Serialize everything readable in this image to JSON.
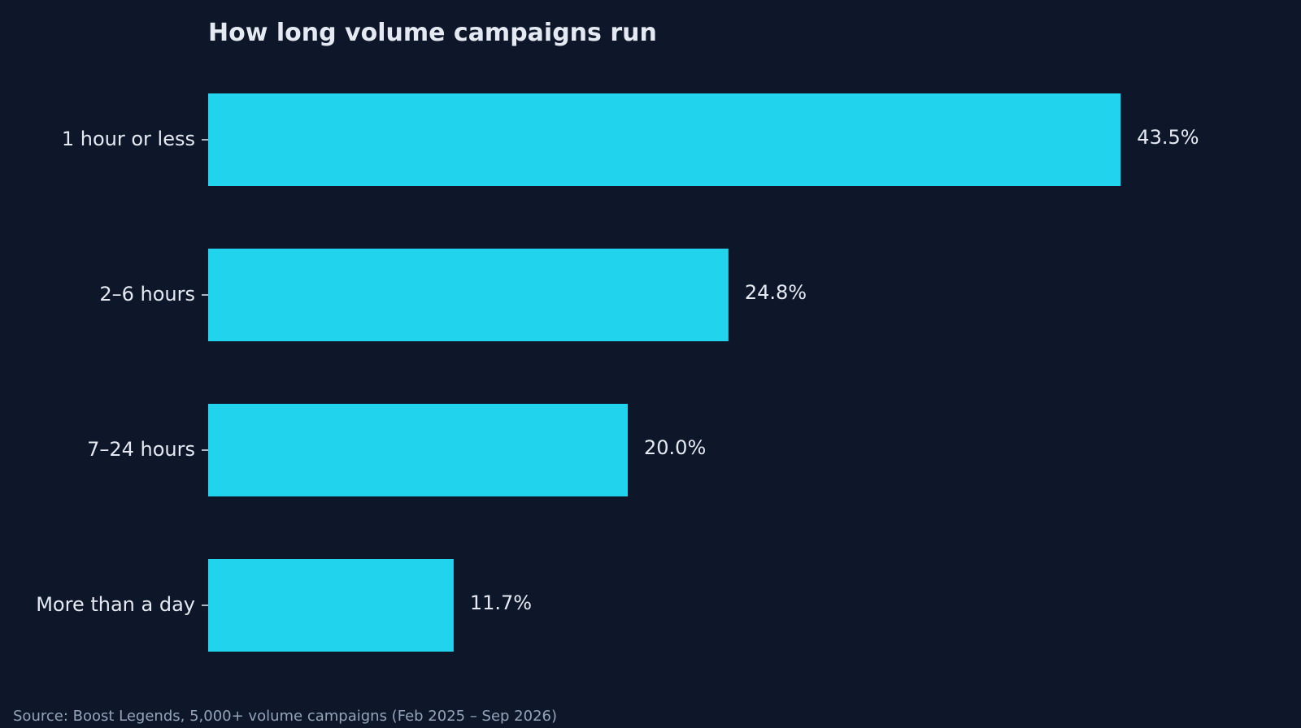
{
  "chart_data": {
    "type": "bar",
    "orientation": "horizontal",
    "title": "How long volume campaigns run",
    "categories": [
      "1 hour or less",
      "2–6 hours",
      "7–24 hours",
      "More than a day"
    ],
    "values": [
      43.5,
      24.8,
      20.0,
      11.7
    ],
    "value_labels": [
      "43.5%",
      "24.8%",
      "20.0%",
      "11.7%"
    ],
    "unit": "%",
    "xlim": [
      0,
      50
    ],
    "grid": false,
    "legend": "none",
    "source": "Source: Boost Legends, 5,000+ volume campaigns (Feb 2025 – Sep 2026)"
  },
  "colors": {
    "background": "#0e172a",
    "bar": "#22d3ee",
    "text": "#e5eaf2",
    "muted": "#94a3b8"
  }
}
